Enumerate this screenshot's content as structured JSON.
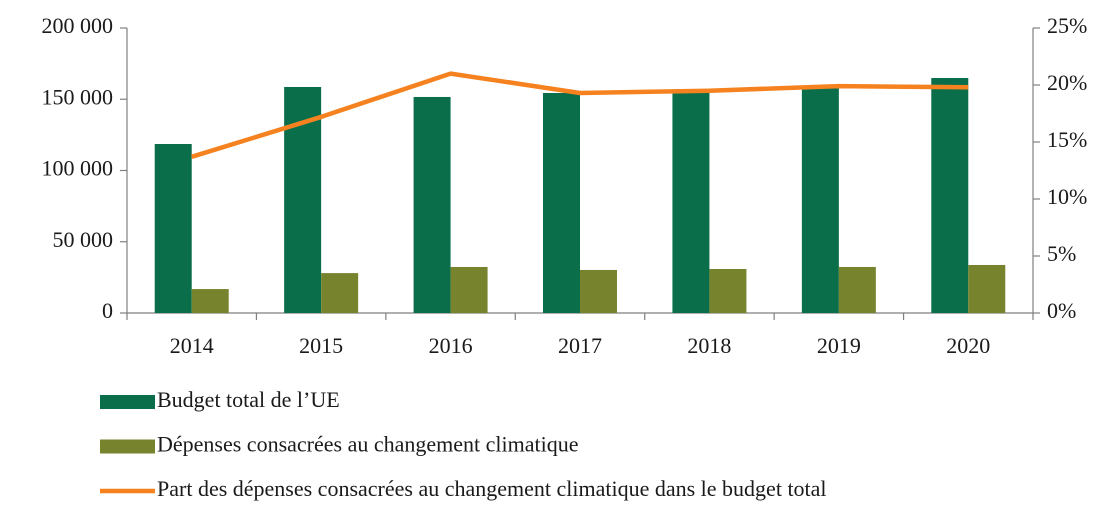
{
  "chart_data": {
    "type": "bar",
    "categories": [
      "2014",
      "2015",
      "2016",
      "2017",
      "2018",
      "2019",
      "2020"
    ],
    "series": [
      {
        "name": "Budget total de l’UE",
        "color": "#0b6e4a",
        "values": [
          118600,
          158600,
          151600,
          154400,
          155000,
          158000,
          164900
        ]
      },
      {
        "name": "Dépenses consacrées au changement climatique",
        "color": "#77842d",
        "values": [
          16800,
          28000,
          32300,
          30200,
          30900,
          32300,
          33700
        ]
      },
      {
        "name": "Part des dépenses consacrées au changement climatique dans le budget total",
        "type": "line",
        "axis": "y2",
        "color": "#f5821f",
        "values": [
          13.7,
          17.2,
          21.0,
          19.3,
          19.5,
          19.9,
          19.8
        ]
      }
    ],
    "ylim": [
      0,
      200000
    ],
    "yticks": [
      0,
      {
        "value": 50000,
        "label": "50 000"
      },
      {
        "value": 100000,
        "label": "100 000"
      },
      {
        "value": 150000,
        "label": "150 000"
      },
      {
        "value": 200000,
        "label": "200 000"
      }
    ],
    "y2lim": [
      0,
      25
    ],
    "y2ticks": [
      {
        "value": 0,
        "label": "0%"
      },
      {
        "value": 5,
        "label": "5%"
      },
      {
        "value": 10,
        "label": "10%"
      },
      {
        "value": 15,
        "label": "15%"
      },
      {
        "value": 20,
        "label": "20%"
      },
      {
        "value": 25,
        "label": "25%"
      }
    ],
    "legend": "bottom"
  }
}
